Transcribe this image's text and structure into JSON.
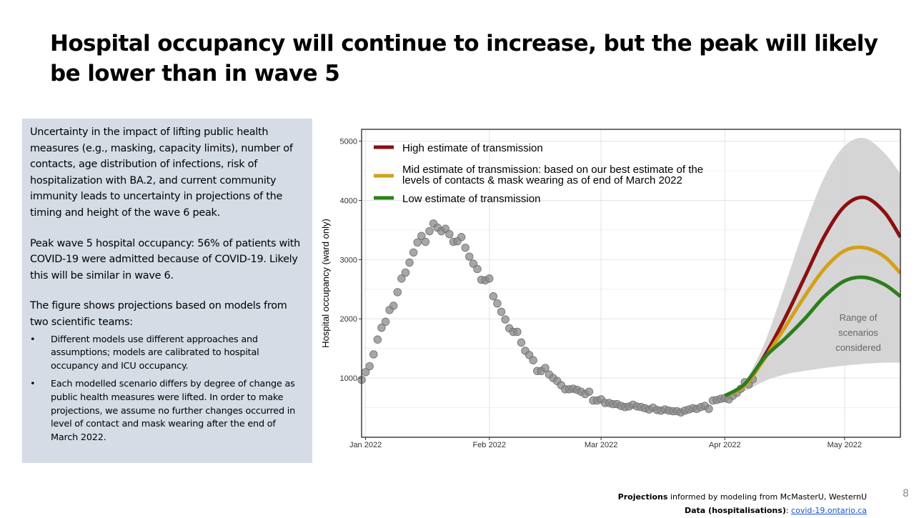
{
  "slide": {
    "title": "Hospital occupancy will continue to increase, but the peak will likely be lower than in wave 5",
    "page_number": "8"
  },
  "info_box": {
    "para1": "Uncertainty in the impact of lifting public health measures (e.g., masking, capacity limits), number of contacts, age distribution of infections, risk of hospitalization with BA.2, and current community immunity leads to uncertainty in projections of the timing and height of the wave 6 peak.",
    "para2": "Peak wave 5 hospital occupancy: 56% of patients with COVID-19 were admitted because of COVID-19. Likely this will be similar in wave 6.",
    "para3": "The figure shows projections based on models from two scientific teams:",
    "bullet_char": "•",
    "bullets": [
      "Different models use different approaches and assumptions; models are calibrated to hospital occupancy and ICU occupancy.",
      "Each modelled scenario differs by degree of change as public health measures were lifted. In order to make projections, we assume no further changes occurred in level of contact and mask wearing after the end of March 2022."
    ]
  },
  "footer": {
    "line1_bold": "Projections",
    "line1_rest": " informed by modeling from McMasterU, WesternU",
    "line2_bold": "Data (hospitalisations)",
    "line2_sep": ": ",
    "line2_link": "covid-19.ontario.ca"
  },
  "chart_data": {
    "type": "line",
    "ylabel": "Hospital occupancy (ward only)",
    "xlabel": "",
    "xlim": [
      "2021-12-31",
      "2022-05-15"
    ],
    "ylim": [
      0,
      5200
    ],
    "yticks": [
      1000,
      2000,
      3000,
      4000,
      5000
    ],
    "xticks": [
      {
        "date": "2022-01-01",
        "label": "Jan 2022"
      },
      {
        "date": "2022-02-01",
        "label": "Feb 2022"
      },
      {
        "date": "2022-03-01",
        "label": "Mar 2022"
      },
      {
        "date": "2022-04-01",
        "label": "Apr 2022"
      },
      {
        "date": "2022-05-01",
        "label": "May 2022"
      }
    ],
    "grid": true,
    "legend_position": "top-left",
    "legend": [
      {
        "label": "High estimate of transmission",
        "color": "#8b1010"
      },
      {
        "label": "Mid estimate of transmission: based on our best estimate of the levels of contacts & mask wearing as of end of March 2022",
        "color": "#d4a017"
      },
      {
        "label": "Low estimate of transmission",
        "color": "#2e7d1e"
      }
    ],
    "annotation": "Range of scenarios considered",
    "observed": {
      "name": "Observed hospitalisations",
      "color": "#8a8a8a",
      "points": [
        [
          "2021-12-31",
          970
        ],
        [
          "2022-01-01",
          1100
        ],
        [
          "2022-01-02",
          1200
        ],
        [
          "2022-01-03",
          1400
        ],
        [
          "2022-01-04",
          1650
        ],
        [
          "2022-01-05",
          1850
        ],
        [
          "2022-01-06",
          1950
        ],
        [
          "2022-01-07",
          2150
        ],
        [
          "2022-01-08",
          2220
        ],
        [
          "2022-01-09",
          2450
        ],
        [
          "2022-01-10",
          2680
        ],
        [
          "2022-01-11",
          2780
        ],
        [
          "2022-01-12",
          2950
        ],
        [
          "2022-01-13",
          3120
        ],
        [
          "2022-01-14",
          3290
        ],
        [
          "2022-01-15",
          3400
        ],
        [
          "2022-01-16",
          3300
        ],
        [
          "2022-01-17",
          3480
        ],
        [
          "2022-01-18",
          3610
        ],
        [
          "2022-01-19",
          3540
        ],
        [
          "2022-01-20",
          3480
        ],
        [
          "2022-01-21",
          3520
        ],
        [
          "2022-01-22",
          3430
        ],
        [
          "2022-01-23",
          3300
        ],
        [
          "2022-01-24",
          3310
        ],
        [
          "2022-01-25",
          3380
        ],
        [
          "2022-01-26",
          3200
        ],
        [
          "2022-01-27",
          3050
        ],
        [
          "2022-01-28",
          2930
        ],
        [
          "2022-01-29",
          2840
        ],
        [
          "2022-01-30",
          2660
        ],
        [
          "2022-01-31",
          2650
        ],
        [
          "2022-02-01",
          2680
        ],
        [
          "2022-02-02",
          2380
        ],
        [
          "2022-02-03",
          2260
        ],
        [
          "2022-02-04",
          2120
        ],
        [
          "2022-02-05",
          1990
        ],
        [
          "2022-02-06",
          1840
        ],
        [
          "2022-02-07",
          1780
        ],
        [
          "2022-02-08",
          1780
        ],
        [
          "2022-02-09",
          1600
        ],
        [
          "2022-02-10",
          1460
        ],
        [
          "2022-02-11",
          1390
        ],
        [
          "2022-02-12",
          1300
        ],
        [
          "2022-02-13",
          1120
        ],
        [
          "2022-02-14",
          1120
        ],
        [
          "2022-02-15",
          1170
        ],
        [
          "2022-02-16",
          1060
        ],
        [
          "2022-02-17",
          1000
        ],
        [
          "2022-02-18",
          950
        ],
        [
          "2022-02-19",
          880
        ],
        [
          "2022-02-20",
          810
        ],
        [
          "2022-02-21",
          810
        ],
        [
          "2022-02-22",
          820
        ],
        [
          "2022-02-23",
          800
        ],
        [
          "2022-02-24",
          770
        ],
        [
          "2022-02-25",
          730
        ],
        [
          "2022-02-26",
          770
        ],
        [
          "2022-02-27",
          620
        ],
        [
          "2022-02-28",
          620
        ],
        [
          "2022-03-01",
          640
        ],
        [
          "2022-03-02",
          580
        ],
        [
          "2022-03-03",
          580
        ],
        [
          "2022-03-04",
          560
        ],
        [
          "2022-03-05",
          560
        ],
        [
          "2022-03-06",
          530
        ],
        [
          "2022-03-07",
          510
        ],
        [
          "2022-03-08",
          520
        ],
        [
          "2022-03-09",
          550
        ],
        [
          "2022-03-10",
          520
        ],
        [
          "2022-03-11",
          510
        ],
        [
          "2022-03-12",
          490
        ],
        [
          "2022-03-13",
          470
        ],
        [
          "2022-03-14",
          500
        ],
        [
          "2022-03-15",
          460
        ],
        [
          "2022-03-16",
          450
        ],
        [
          "2022-03-17",
          470
        ],
        [
          "2022-03-18",
          450
        ],
        [
          "2022-03-19",
          440
        ],
        [
          "2022-03-20",
          440
        ],
        [
          "2022-03-21",
          420
        ],
        [
          "2022-03-22",
          450
        ],
        [
          "2022-03-23",
          470
        ],
        [
          "2022-03-24",
          490
        ],
        [
          "2022-03-25",
          480
        ],
        [
          "2022-03-26",
          510
        ],
        [
          "2022-03-27",
          530
        ],
        [
          "2022-03-28",
          480
        ],
        [
          "2022-03-29",
          620
        ],
        [
          "2022-03-30",
          630
        ],
        [
          "2022-03-31",
          650
        ],
        [
          "2022-04-01",
          660
        ],
        [
          "2022-04-02",
          640
        ],
        [
          "2022-04-03",
          700
        ],
        [
          "2022-04-04",
          750
        ],
        [
          "2022-04-05",
          820
        ],
        [
          "2022-04-06",
          930
        ],
        [
          "2022-04-07",
          890
        ],
        [
          "2022-04-08",
          980
        ]
      ]
    },
    "series": [
      {
        "name": "High estimate of transmission",
        "color": "#8b1010",
        "x": [
          "2022-04-01",
          "2022-04-06",
          "2022-04-11",
          "2022-04-16",
          "2022-04-21",
          "2022-04-26",
          "2022-05-01",
          "2022-05-06",
          "2022-05-11",
          "2022-05-15"
        ],
        "values": [
          700,
          880,
          1380,
          2000,
          2700,
          3400,
          3900,
          4050,
          3800,
          3380
        ]
      },
      {
        "name": "Mid estimate of transmission",
        "color": "#d4a017",
        "x": [
          "2022-04-01",
          "2022-04-06",
          "2022-04-11",
          "2022-04-16",
          "2022-04-21",
          "2022-04-26",
          "2022-05-01",
          "2022-05-06",
          "2022-05-11",
          "2022-05-15"
        ],
        "values": [
          700,
          870,
          1330,
          1850,
          2380,
          2850,
          3150,
          3200,
          3050,
          2770
        ]
      },
      {
        "name": "Low estimate of transmission",
        "color": "#2e7d1e",
        "x": [
          "2022-04-01",
          "2022-04-06",
          "2022-04-11",
          "2022-04-16",
          "2022-04-21",
          "2022-04-26",
          "2022-05-01",
          "2022-05-06",
          "2022-05-11",
          "2022-05-15"
        ],
        "values": [
          700,
          900,
          1350,
          1660,
          2000,
          2380,
          2640,
          2700,
          2580,
          2380
        ]
      }
    ],
    "range_band": {
      "name": "Range of scenarios considered",
      "color": "#d3d3d3",
      "x": [
        "2022-04-01",
        "2022-04-06",
        "2022-04-11",
        "2022-04-16",
        "2022-04-21",
        "2022-04-26",
        "2022-05-01",
        "2022-05-06",
        "2022-05-11",
        "2022-05-15"
      ],
      "upper": [
        720,
        950,
        1600,
        2550,
        3550,
        4400,
        4920,
        5050,
        4800,
        4450
      ],
      "lower": [
        680,
        780,
        950,
        1060,
        1120,
        1170,
        1210,
        1240,
        1260,
        1260
      ]
    }
  }
}
